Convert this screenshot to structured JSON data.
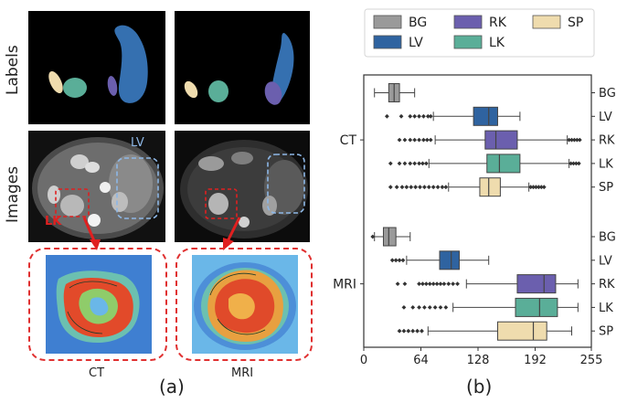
{
  "panel_a": {
    "row_labels": {
      "labels": "Labels",
      "images": "Images"
    },
    "overlay_lv": "LV",
    "overlay_lk": "LK",
    "col_labels": {
      "ct": "CT",
      "mri": "MRI"
    },
    "caption": "(a)"
  },
  "panel_b": {
    "caption": "(b)"
  },
  "chart_data": {
    "type": "boxplot-horizontal",
    "xlim": [
      0,
      255
    ],
    "xticks": [
      0,
      64,
      128,
      192,
      255
    ],
    "groups": [
      {
        "name": "CT",
        "boxes": [
          {
            "label": "BG",
            "whislo": 12,
            "q1": 28,
            "med": 34,
            "q3": 40,
            "whishi": 57,
            "outliers": []
          },
          {
            "label": "LV",
            "whislo": 78,
            "q1": 123,
            "med": 140,
            "q3": 150,
            "whishi": 175,
            "outliers": [
              26,
              42,
              52,
              57,
              62,
              67,
              72,
              75
            ]
          },
          {
            "label": "RK",
            "whislo": 80,
            "q1": 136,
            "med": 148,
            "q3": 172,
            "whishi": 228,
            "outliers": [
              40,
              46,
              52,
              57,
              62,
              67,
              71,
              75,
              230,
              233,
              236,
              239,
              242
            ]
          },
          {
            "label": "LK",
            "whislo": 73,
            "q1": 138,
            "med": 152,
            "q3": 175,
            "whishi": 230,
            "outliers": [
              30,
              40,
              46,
              52,
              57,
              62,
              66,
              70,
              232,
              235,
              238,
              241
            ]
          },
          {
            "label": "SP",
            "whislo": 95,
            "q1": 130,
            "med": 140,
            "q3": 153,
            "whishi": 185,
            "outliers": [
              30,
              37,
              43,
              48,
              53,
              58,
              63,
              68,
              73,
              78,
              83,
              88,
              92,
              187,
              190,
              193,
              196,
              199,
              202
            ]
          }
        ]
      },
      {
        "name": "MRI",
        "boxes": [
          {
            "label": "BG",
            "whislo": 12,
            "q1": 22,
            "med": 28,
            "q3": 36,
            "whishi": 52,
            "outliers": [
              10
            ]
          },
          {
            "label": "LV",
            "whislo": 48,
            "q1": 85,
            "med": 98,
            "q3": 107,
            "whishi": 140,
            "outliers": [
              32,
              36,
              40,
              44
            ]
          },
          {
            "label": "RK",
            "whislo": 115,
            "q1": 172,
            "med": 202,
            "q3": 215,
            "whishi": 240,
            "outliers": [
              38,
              46,
              62,
              66,
              70,
              74,
              78,
              82,
              86,
              90,
              95,
              100,
              105
            ]
          },
          {
            "label": "LK",
            "whislo": 100,
            "q1": 170,
            "med": 197,
            "q3": 217,
            "whishi": 240,
            "outliers": [
              45,
              55,
              62,
              68,
              74,
              80,
              86,
              92
            ]
          },
          {
            "label": "SP",
            "whislo": 72,
            "q1": 150,
            "med": 190,
            "q3": 205,
            "whishi": 233,
            "outliers": [
              40,
              45,
              50,
              55,
              60,
              65
            ]
          }
        ]
      }
    ],
    "legend": {
      "placement": "top",
      "entries": [
        {
          "label": "BG",
          "color": "#9a9a9a"
        },
        {
          "label": "RK",
          "color": "#6b5fae"
        },
        {
          "label": "SP",
          "color": "#efdcae"
        },
        {
          "label": "LV",
          "color": "#2f63a0"
        },
        {
          "label": "LK",
          "color": "#5aae98"
        }
      ]
    },
    "colors": {
      "BG": "#9a9a9a",
      "LV": "#2f63a0",
      "RK": "#6b5fae",
      "LK": "#5aae98",
      "SP": "#efdcae"
    }
  }
}
